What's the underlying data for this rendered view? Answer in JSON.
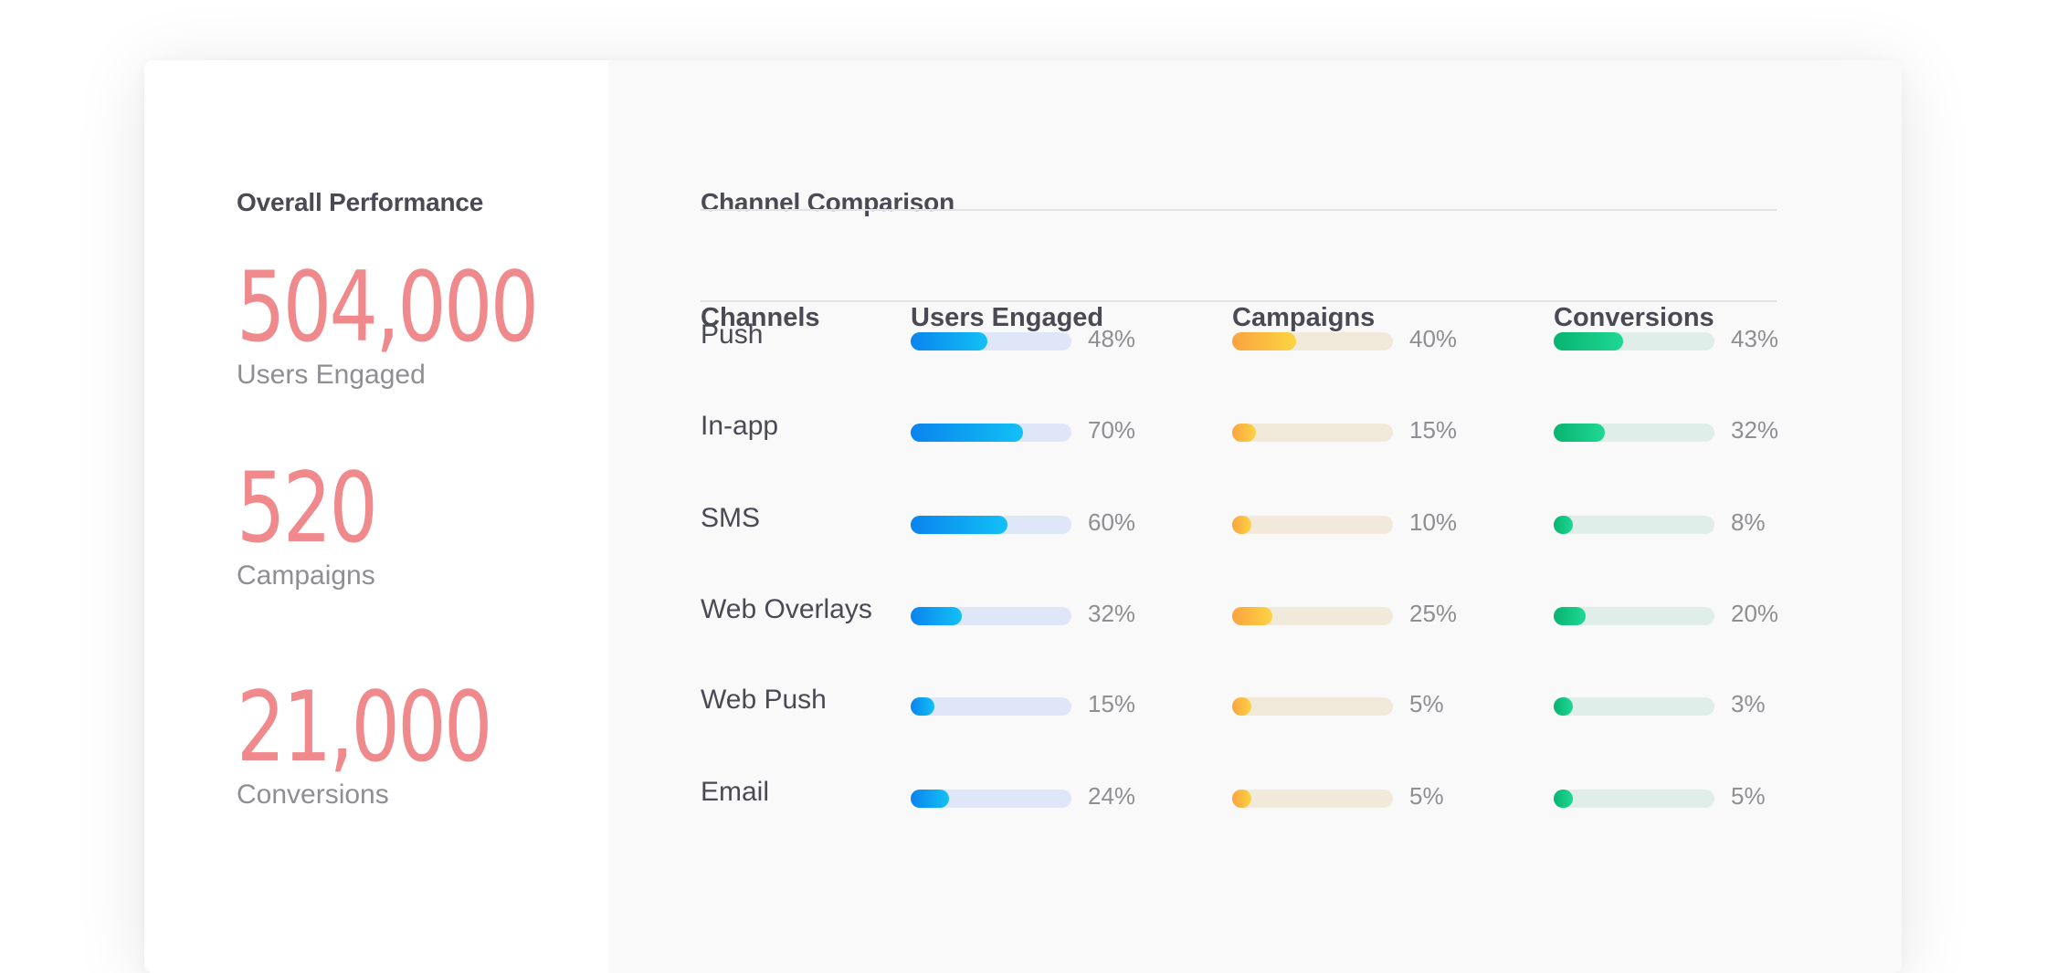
{
  "overall": {
    "title": "Overall Performance",
    "metrics": [
      {
        "value": "504,000",
        "label": "Users Engaged"
      },
      {
        "value": "520",
        "label": "Campaigns"
      },
      {
        "value": "21,000",
        "label": "Conversions"
      }
    ]
  },
  "comparison": {
    "title": "Channel Comparison",
    "columns": [
      "Channels",
      "Users Engaged",
      "Campaigns",
      "Conversions"
    ],
    "rows": [
      {
        "channel": "Push",
        "users": "48%",
        "campaigns": "40%",
        "conversions": "43%"
      },
      {
        "channel": "In-app",
        "users": "70%",
        "campaigns": "15%",
        "conversions": "32%"
      },
      {
        "channel": "SMS",
        "users": "60%",
        "campaigns": "10%",
        "conversions": "8%"
      },
      {
        "channel": "Web Overlays",
        "users": "32%",
        "campaigns": "25%",
        "conversions": "20%"
      },
      {
        "channel": "Web Push",
        "users": "15%",
        "campaigns": "5%",
        "conversions": "3%"
      },
      {
        "channel": "Email",
        "users": "24%",
        "campaigns": "5%",
        "conversions": "5%"
      }
    ]
  },
  "colors": {
    "metric_value": "#f0898c",
    "users_bar": "#0a84ee",
    "campaigns_bar": "#fba33f",
    "conversions_bar": "#07b36f"
  }
}
